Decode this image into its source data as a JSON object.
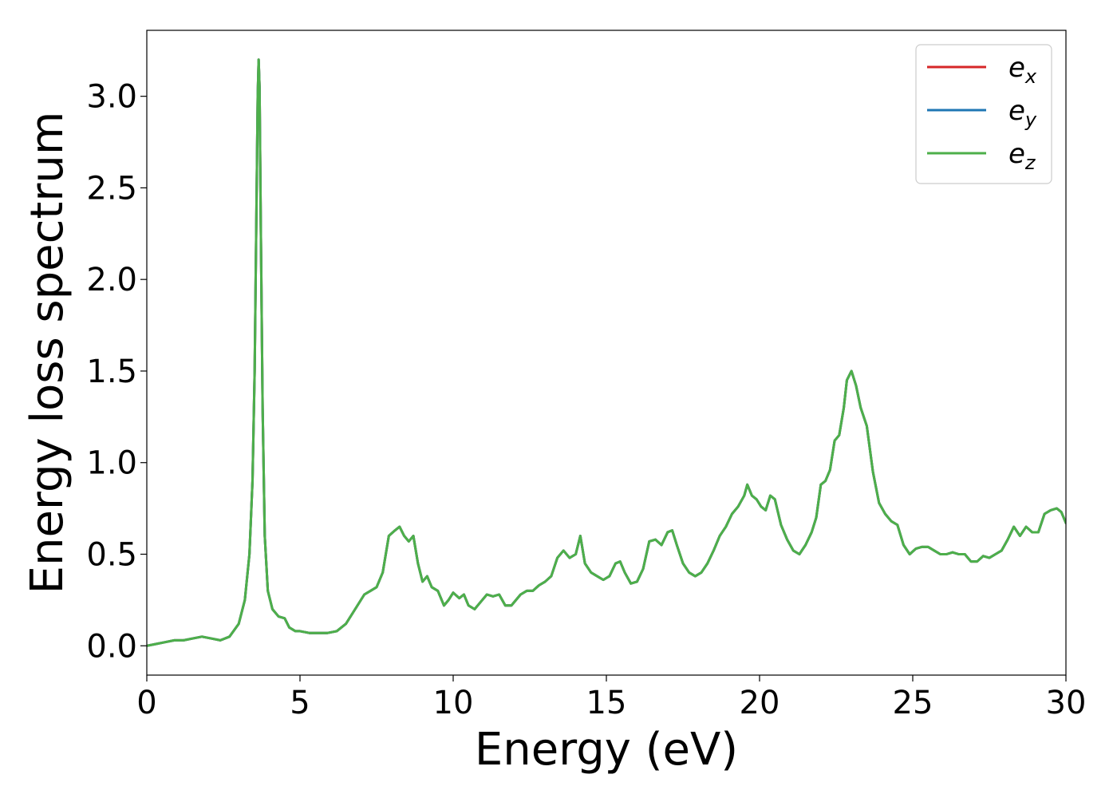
{
  "chart_data": {
    "type": "line",
    "title": "",
    "xlabel": "Energy (eV)",
    "ylabel": "Energy loss spectrum",
    "xlim": [
      0,
      30
    ],
    "ylim": [
      -0.16,
      3.36
    ],
    "xticks": [
      0,
      5,
      10,
      15,
      20,
      25,
      30
    ],
    "xtick_labels": [
      "0",
      "5",
      "10",
      "15",
      "20",
      "25",
      "30"
    ],
    "yticks": [
      0.0,
      0.5,
      1.0,
      1.5,
      2.0,
      2.5,
      3.0
    ],
    "ytick_labels": [
      "0.0",
      "0.5",
      "1.0",
      "1.5",
      "2.0",
      "2.5",
      "3.0"
    ],
    "grid": false,
    "legend_position": "top-right",
    "legend": [
      {
        "base": "e",
        "sub": "x",
        "color": "#d62728"
      },
      {
        "base": "e",
        "sub": "y",
        "color": "#1f77b4"
      },
      {
        "base": "e",
        "sub": "z",
        "color": "#4daf4a"
      }
    ],
    "x": [
      0,
      0.3,
      0.6,
      0.9,
      1.2,
      1.5,
      1.8,
      2.1,
      2.4,
      2.7,
      3.0,
      3.2,
      3.35,
      3.45,
      3.52,
      3.58,
      3.62,
      3.65,
      3.68,
      3.72,
      3.78,
      3.85,
      3.95,
      4.1,
      4.3,
      4.5,
      4.65,
      4.85,
      5.0,
      5.3,
      5.6,
      5.9,
      6.2,
      6.5,
      6.8,
      7.1,
      7.3,
      7.5,
      7.7,
      7.9,
      8.1,
      8.25,
      8.4,
      8.55,
      8.7,
      8.85,
      9.0,
      9.15,
      9.3,
      9.5,
      9.7,
      9.85,
      10.0,
      10.2,
      10.35,
      10.5,
      10.7,
      10.9,
      11.1,
      11.3,
      11.5,
      11.7,
      11.9,
      12.2,
      12.4,
      12.6,
      12.8,
      13.0,
      13.2,
      13.4,
      13.6,
      13.8,
      14.0,
      14.15,
      14.3,
      14.5,
      14.7,
      14.9,
      15.1,
      15.3,
      15.45,
      15.6,
      15.8,
      16.0,
      16.2,
      16.4,
      16.6,
      16.8,
      17.0,
      17.15,
      17.3,
      17.5,
      17.7,
      17.9,
      18.1,
      18.3,
      18.5,
      18.7,
      18.9,
      19.1,
      19.3,
      19.5,
      19.6,
      19.75,
      19.9,
      20.05,
      20.2,
      20.35,
      20.5,
      20.7,
      20.9,
      21.1,
      21.3,
      21.5,
      21.7,
      21.85,
      22.0,
      22.15,
      22.3,
      22.45,
      22.6,
      22.75,
      22.85,
      23.0,
      23.15,
      23.3,
      23.5,
      23.7,
      23.9,
      24.1,
      24.3,
      24.5,
      24.7,
      24.9,
      25.1,
      25.3,
      25.5,
      25.7,
      25.9,
      26.1,
      26.3,
      26.5,
      26.7,
      26.9,
      27.1,
      27.3,
      27.5,
      27.7,
      27.9,
      28.1,
      28.3,
      28.5,
      28.7,
      28.9,
      29.1,
      29.3,
      29.5,
      29.7,
      29.85,
      30.0
    ],
    "series": [
      {
        "name": "e_x",
        "color": "#d62728",
        "values": [
          0.0,
          0.01,
          0.02,
          0.03,
          0.03,
          0.04,
          0.05,
          0.04,
          0.03,
          0.05,
          0.12,
          0.25,
          0.5,
          0.9,
          1.5,
          2.4,
          3.0,
          3.2,
          3.05,
          2.3,
          1.3,
          0.6,
          0.3,
          0.2,
          0.16,
          0.15,
          0.1,
          0.08,
          0.08,
          0.07,
          0.07,
          0.07,
          0.08,
          0.12,
          0.2,
          0.28,
          0.3,
          0.32,
          0.4,
          0.6,
          0.63,
          0.65,
          0.6,
          0.57,
          0.6,
          0.45,
          0.35,
          0.38,
          0.32,
          0.3,
          0.22,
          0.25,
          0.29,
          0.26,
          0.28,
          0.22,
          0.2,
          0.24,
          0.28,
          0.27,
          0.28,
          0.22,
          0.22,
          0.28,
          0.3,
          0.3,
          0.33,
          0.35,
          0.38,
          0.48,
          0.52,
          0.48,
          0.5,
          0.6,
          0.45,
          0.4,
          0.38,
          0.36,
          0.38,
          0.45,
          0.46,
          0.4,
          0.34,
          0.35,
          0.42,
          0.57,
          0.58,
          0.55,
          0.62,
          0.63,
          0.55,
          0.45,
          0.4,
          0.38,
          0.4,
          0.45,
          0.52,
          0.6,
          0.65,
          0.72,
          0.76,
          0.82,
          0.88,
          0.82,
          0.8,
          0.76,
          0.74,
          0.82,
          0.8,
          0.66,
          0.58,
          0.52,
          0.5,
          0.55,
          0.62,
          0.7,
          0.88,
          0.9,
          0.96,
          1.12,
          1.15,
          1.3,
          1.45,
          1.5,
          1.42,
          1.3,
          1.2,
          0.95,
          0.78,
          0.72,
          0.68,
          0.66,
          0.55,
          0.5,
          0.53,
          0.54,
          0.54,
          0.52,
          0.5,
          0.5,
          0.51,
          0.5,
          0.5,
          0.46,
          0.46,
          0.49,
          0.48,
          0.5,
          0.52,
          0.58,
          0.65,
          0.6,
          0.65,
          0.62,
          0.62,
          0.72,
          0.74,
          0.75,
          0.73,
          0.67
        ]
      },
      {
        "name": "e_y",
        "color": "#1f77b4",
        "values": [
          0.0,
          0.01,
          0.02,
          0.03,
          0.03,
          0.04,
          0.05,
          0.04,
          0.03,
          0.05,
          0.12,
          0.25,
          0.5,
          0.9,
          1.5,
          2.4,
          3.0,
          3.2,
          3.05,
          2.3,
          1.3,
          0.6,
          0.3,
          0.2,
          0.16,
          0.15,
          0.1,
          0.08,
          0.08,
          0.07,
          0.07,
          0.07,
          0.08,
          0.12,
          0.2,
          0.28,
          0.3,
          0.32,
          0.4,
          0.6,
          0.63,
          0.65,
          0.6,
          0.57,
          0.6,
          0.45,
          0.35,
          0.38,
          0.32,
          0.3,
          0.22,
          0.25,
          0.29,
          0.26,
          0.28,
          0.22,
          0.2,
          0.24,
          0.28,
          0.27,
          0.28,
          0.22,
          0.22,
          0.28,
          0.3,
          0.3,
          0.33,
          0.35,
          0.38,
          0.48,
          0.52,
          0.48,
          0.5,
          0.6,
          0.45,
          0.4,
          0.38,
          0.36,
          0.38,
          0.45,
          0.46,
          0.4,
          0.34,
          0.35,
          0.42,
          0.57,
          0.58,
          0.55,
          0.62,
          0.63,
          0.55,
          0.45,
          0.4,
          0.38,
          0.4,
          0.45,
          0.52,
          0.6,
          0.65,
          0.72,
          0.76,
          0.82,
          0.88,
          0.82,
          0.8,
          0.76,
          0.74,
          0.82,
          0.8,
          0.66,
          0.58,
          0.52,
          0.5,
          0.55,
          0.62,
          0.7,
          0.88,
          0.9,
          0.96,
          1.12,
          1.15,
          1.3,
          1.45,
          1.5,
          1.42,
          1.3,
          1.2,
          0.95,
          0.78,
          0.72,
          0.68,
          0.66,
          0.55,
          0.5,
          0.53,
          0.54,
          0.54,
          0.52,
          0.5,
          0.5,
          0.51,
          0.5,
          0.5,
          0.46,
          0.46,
          0.49,
          0.48,
          0.5,
          0.52,
          0.58,
          0.65,
          0.6,
          0.65,
          0.62,
          0.62,
          0.72,
          0.74,
          0.75,
          0.73,
          0.67
        ]
      },
      {
        "name": "e_z",
        "color": "#4daf4a",
        "values": [
          0.0,
          0.01,
          0.02,
          0.03,
          0.03,
          0.04,
          0.05,
          0.04,
          0.03,
          0.05,
          0.12,
          0.25,
          0.5,
          0.9,
          1.5,
          2.4,
          3.0,
          3.2,
          3.05,
          2.3,
          1.3,
          0.6,
          0.3,
          0.2,
          0.16,
          0.15,
          0.1,
          0.08,
          0.08,
          0.07,
          0.07,
          0.07,
          0.08,
          0.12,
          0.2,
          0.28,
          0.3,
          0.32,
          0.4,
          0.6,
          0.63,
          0.65,
          0.6,
          0.57,
          0.6,
          0.45,
          0.35,
          0.38,
          0.32,
          0.3,
          0.22,
          0.25,
          0.29,
          0.26,
          0.28,
          0.22,
          0.2,
          0.24,
          0.28,
          0.27,
          0.28,
          0.22,
          0.22,
          0.28,
          0.3,
          0.3,
          0.33,
          0.35,
          0.38,
          0.48,
          0.52,
          0.48,
          0.5,
          0.6,
          0.45,
          0.4,
          0.38,
          0.36,
          0.38,
          0.45,
          0.46,
          0.4,
          0.34,
          0.35,
          0.42,
          0.57,
          0.58,
          0.55,
          0.62,
          0.63,
          0.55,
          0.45,
          0.4,
          0.38,
          0.4,
          0.45,
          0.52,
          0.6,
          0.65,
          0.72,
          0.76,
          0.82,
          0.88,
          0.82,
          0.8,
          0.76,
          0.74,
          0.82,
          0.8,
          0.66,
          0.58,
          0.52,
          0.5,
          0.55,
          0.62,
          0.7,
          0.88,
          0.9,
          0.96,
          1.12,
          1.15,
          1.3,
          1.45,
          1.5,
          1.42,
          1.3,
          1.2,
          0.95,
          0.78,
          0.72,
          0.68,
          0.66,
          0.55,
          0.5,
          0.53,
          0.54,
          0.54,
          0.52,
          0.5,
          0.5,
          0.51,
          0.5,
          0.5,
          0.46,
          0.46,
          0.49,
          0.48,
          0.5,
          0.52,
          0.58,
          0.65,
          0.6,
          0.65,
          0.62,
          0.62,
          0.72,
          0.74,
          0.75,
          0.73,
          0.67
        ]
      }
    ]
  }
}
